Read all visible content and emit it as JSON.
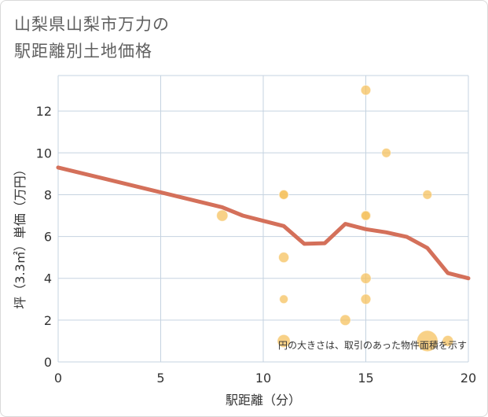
{
  "title_lines": [
    "山梨県山梨市万力の",
    "駅距離別土地価格"
  ],
  "chart_data": {
    "type": "scatter",
    "xlabel": "駅距離（分）",
    "ylabel": "坪（3.3㎡）単価（万円）",
    "xlim": [
      0,
      20
    ],
    "ylim": [
      0,
      13.7
    ],
    "x_ticks": [
      0,
      5,
      10,
      15,
      20
    ],
    "y_ticks": [
      0,
      2,
      4,
      6,
      8,
      10,
      12
    ],
    "grid": true,
    "annotation": "円の大きさは、取引のあった物件面積を示す",
    "colors": {
      "bubble": "#f5c15f",
      "line": "#d4705a",
      "grid": "#c5d3e0"
    },
    "points": [
      {
        "x": 8,
        "y": 7,
        "size": 2.2
      },
      {
        "x": 11,
        "y": 8,
        "size": 1.3
      },
      {
        "x": 11,
        "y": 8,
        "size": 1.0
      },
      {
        "x": 11,
        "y": 5,
        "size": 1.6
      },
      {
        "x": 11,
        "y": 3,
        "size": 0.7
      },
      {
        "x": 11,
        "y": 1,
        "size": 3.6
      },
      {
        "x": 14,
        "y": 2,
        "size": 1.8
      },
      {
        "x": 15,
        "y": 13,
        "size": 1.3
      },
      {
        "x": 15,
        "y": 7,
        "size": 1.5
      },
      {
        "x": 15,
        "y": 7,
        "size": 1.0
      },
      {
        "x": 15,
        "y": 4,
        "size": 1.7
      },
      {
        "x": 15,
        "y": 3,
        "size": 1.4
      },
      {
        "x": 16,
        "y": 10,
        "size": 1.0
      },
      {
        "x": 18,
        "y": 8,
        "size": 1.0
      },
      {
        "x": 18,
        "y": 1,
        "size": 15
      },
      {
        "x": 19,
        "y": 1,
        "size": 2.0
      }
    ],
    "trend_line": {
      "x": [
        0,
        8,
        9,
        10,
        11,
        12,
        13,
        14,
        15,
        16,
        17,
        18,
        19,
        20
      ],
      "y": [
        9.3,
        7.4,
        7.0,
        6.75,
        6.5,
        5.65,
        5.68,
        6.6,
        6.35,
        6.2,
        5.98,
        5.45,
        4.25,
        4.0
      ]
    }
  }
}
